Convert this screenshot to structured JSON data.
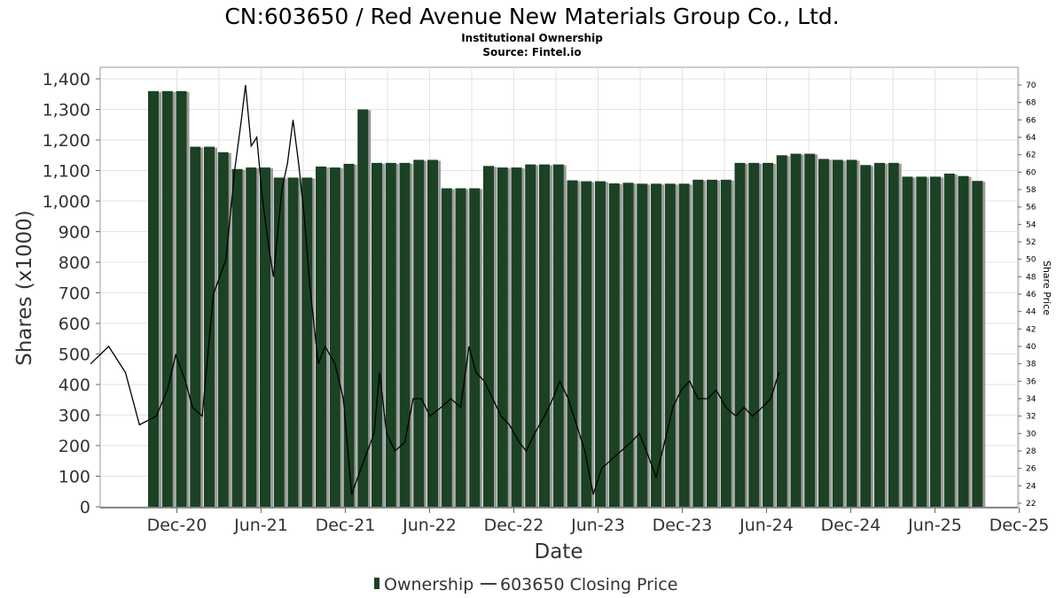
{
  "chart_data": {
    "type": "bar",
    "title": "CN:603650 / Red Avenue New Materials Group Co., Ltd.",
    "subtitle": "Institutional Ownership",
    "source": "Source: Fintel.io",
    "xlabel": "Date",
    "ylabel": "Shares (x1000)",
    "y2label": "Share Price",
    "ylim": [
      0,
      1450
    ],
    "y2lim": [
      22,
      71
    ],
    "yticks": [
      "0",
      "100",
      "200",
      "300",
      "400",
      "500",
      "600",
      "700",
      "800",
      "900",
      "1,000",
      "1,100",
      "1,200",
      "1,300",
      "1,400"
    ],
    "y2ticks": [
      "22",
      "24",
      "26",
      "28",
      "30",
      "32",
      "34",
      "36",
      "38",
      "40",
      "42",
      "44",
      "46",
      "48",
      "50",
      "52",
      "54",
      "56",
      "58",
      "60",
      "62",
      "64",
      "66",
      "68",
      "70"
    ],
    "xticks": [
      "Dec-20",
      "Jun-21",
      "Dec-21",
      "Jun-22",
      "Dec-22",
      "Jun-23",
      "Dec-23",
      "Jun-24",
      "Dec-24",
      "Jun-25",
      "Dec-25"
    ],
    "grid": true,
    "legend_position": "bottom-center",
    "series": [
      {
        "name": "Ownership",
        "color": "#1b4224",
        "values": [
          1360,
          1360,
          1360,
          1178,
          1178,
          1160,
          1105,
          1110,
          1110,
          1077,
          1077,
          1077,
          1113,
          1110,
          1122,
          1300,
          1125,
          1125,
          1125,
          1135,
          1135,
          1042,
          1042,
          1042,
          1115,
          1110,
          1110,
          1120,
          1120,
          1120,
          1068,
          1065,
          1065,
          1058,
          1060,
          1057,
          1057,
          1057,
          1057,
          1070,
          1070,
          1070,
          1125,
          1125,
          1125,
          1150,
          1155,
          1155,
          1138,
          1135,
          1135,
          1118,
          1125,
          1125,
          1080,
          1080,
          1080,
          1090,
          1082,
          1066
        ]
      },
      {
        "name": "603650 Closing Price",
        "color": "#000000",
        "points": [
          [
            -4.5,
            38
          ],
          [
            -3.2,
            40
          ],
          [
            -2.0,
            37
          ],
          [
            -1.0,
            31
          ],
          [
            0.2,
            32
          ],
          [
            1.0,
            35
          ],
          [
            1.6,
            39
          ],
          [
            2.3,
            36
          ],
          [
            2.8,
            33
          ],
          [
            3.5,
            32
          ],
          [
            4.3,
            46
          ],
          [
            5.2,
            50
          ],
          [
            5.8,
            60
          ],
          [
            6.3,
            66
          ],
          [
            6.6,
            70
          ],
          [
            7.0,
            63
          ],
          [
            7.4,
            64
          ],
          [
            7.8,
            57
          ],
          [
            8.3,
            51
          ],
          [
            8.6,
            48
          ],
          [
            9.2,
            58
          ],
          [
            9.6,
            61
          ],
          [
            10.0,
            66
          ],
          [
            10.4,
            61
          ],
          [
            10.8,
            55
          ],
          [
            11.2,
            47
          ],
          [
            11.8,
            38
          ],
          [
            12.3,
            40
          ],
          [
            13.0,
            38
          ],
          [
            13.6,
            34
          ],
          [
            14.2,
            23
          ],
          [
            15.1,
            27
          ],
          [
            15.8,
            30
          ],
          [
            16.2,
            37
          ],
          [
            16.7,
            30
          ],
          [
            17.3,
            28
          ],
          [
            18.0,
            29
          ],
          [
            18.6,
            34
          ],
          [
            19.2,
            34
          ],
          [
            19.8,
            32
          ],
          [
            20.6,
            33
          ],
          [
            21.3,
            34
          ],
          [
            22.0,
            33
          ],
          [
            22.6,
            40
          ],
          [
            23.1,
            37
          ],
          [
            23.7,
            36
          ],
          [
            24.3,
            34
          ],
          [
            24.9,
            32
          ],
          [
            25.5,
            31
          ],
          [
            26.2,
            29
          ],
          [
            26.7,
            28
          ],
          [
            27.3,
            30
          ],
          [
            28.0,
            32
          ],
          [
            28.6,
            34
          ],
          [
            29.1,
            36
          ],
          [
            29.7,
            34
          ],
          [
            30.3,
            31
          ],
          [
            30.9,
            28
          ],
          [
            31.5,
            23
          ],
          [
            32.1,
            26
          ],
          [
            32.8,
            27
          ],
          [
            33.5,
            28
          ],
          [
            34.2,
            29
          ],
          [
            34.8,
            30
          ],
          [
            35.3,
            28
          ],
          [
            36.0,
            25
          ],
          [
            36.6,
            29
          ],
          [
            37.2,
            33
          ],
          [
            37.8,
            35
          ],
          [
            38.4,
            36
          ],
          [
            39.0,
            34
          ],
          [
            39.7,
            34
          ],
          [
            40.3,
            35
          ],
          [
            41.0,
            33
          ],
          [
            41.7,
            32
          ],
          [
            42.3,
            33
          ],
          [
            42.9,
            32
          ],
          [
            43.6,
            33
          ],
          [
            44.2,
            34
          ],
          [
            44.8,
            37
          ]
        ]
      }
    ]
  },
  "legend": {
    "ownership": "Ownership",
    "price": "603650 Closing Price"
  }
}
